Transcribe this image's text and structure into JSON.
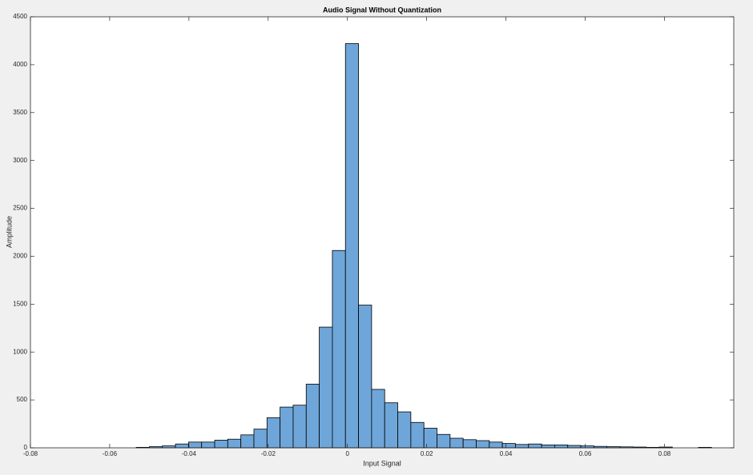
{
  "chart_data": {
    "type": "histogram",
    "title": "Audio Signal Without Quantization",
    "x_label": "Input Signal",
    "y_label": "Amplitude",
    "bins": [
      -0.0533,
      -0.05,
      -0.0467,
      -0.0434,
      -0.0401,
      -0.0368,
      -0.0335,
      -0.0302,
      -0.0269,
      -0.0236,
      -0.0203,
      -0.017,
      -0.0137,
      -0.0104,
      -0.0071,
      -0.0038,
      -0.0005,
      0.0028,
      0.0061,
      0.0094,
      0.0127,
      0.016,
      0.0193,
      0.0226,
      0.0259,
      0.0292,
      0.0325,
      0.0358,
      0.0391,
      0.0424,
      0.0457,
      0.049,
      0.0523,
      0.0556,
      0.0589,
      0.0622,
      0.0655,
      0.0688,
      0.0721,
      0.0754,
      0.0787,
      0.082,
      0.0853,
      0.0886,
      0.0919
    ],
    "values": [
      5,
      12,
      20,
      40,
      60,
      60,
      80,
      90,
      135,
      195,
      315,
      425,
      445,
      665,
      1260,
      2060,
      4220,
      1490,
      610,
      470,
      375,
      265,
      205,
      140,
      100,
      85,
      75,
      60,
      45,
      35,
      40,
      30,
      30,
      25,
      20,
      15,
      12,
      10,
      8,
      5,
      8,
      0,
      0,
      5
    ],
    "color": "#6fa6d9",
    "edge_color": "#000000",
    "xlim": [
      -0.08,
      0.0975
    ],
    "xticks": [
      -0.08,
      -0.06,
      -0.04,
      -0.02,
      0,
      0.02,
      0.04,
      0.06,
      0.08
    ],
    "ylim": [
      0,
      4500
    ],
    "yticks": [
      0,
      500,
      1000,
      1500,
      2000,
      2500,
      3000,
      3500,
      4000,
      4500
    ],
    "grid": false
  }
}
